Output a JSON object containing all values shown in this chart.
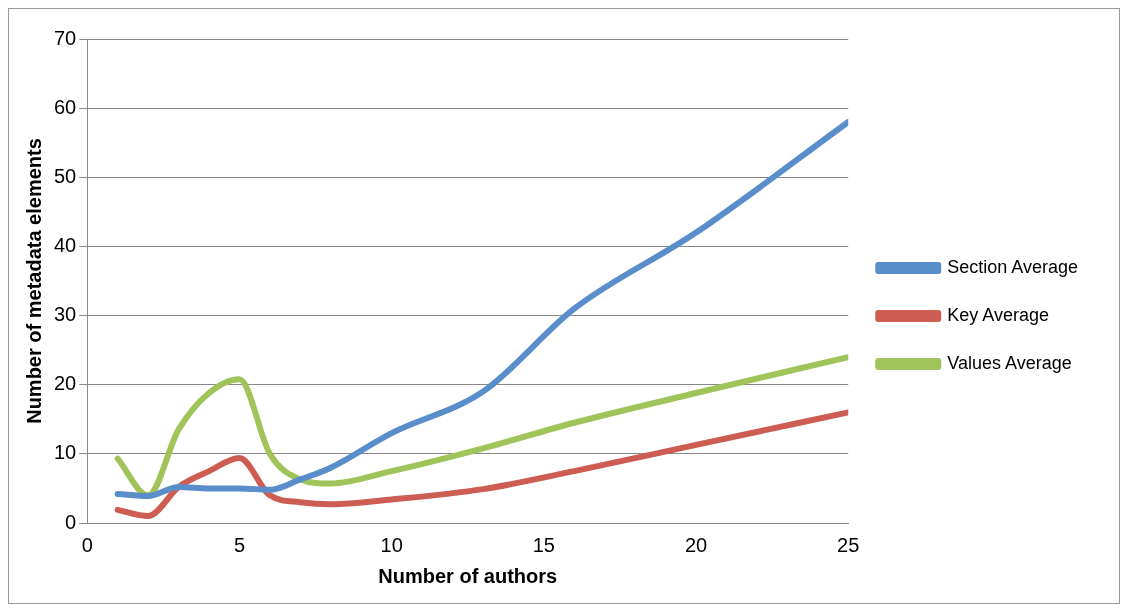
{
  "chart_data": {
    "type": "line",
    "xlabel": "Number of authors",
    "ylabel": "Number of metadata elements",
    "x": [
      1,
      2,
      3,
      4,
      5,
      6,
      7,
      8,
      10,
      13,
      16,
      20,
      25
    ],
    "xlim": [
      0,
      25
    ],
    "xticks": [
      0,
      5,
      10,
      15,
      20,
      25
    ],
    "ylim": [
      0,
      70
    ],
    "yticks": [
      0,
      10,
      20,
      30,
      40,
      50,
      60,
      70
    ],
    "grid": "y",
    "legend": "right",
    "marker": "none",
    "line_style": "solid",
    "series": [
      {
        "name": "Section Average",
        "color": "#5a8ecb",
        "values": [
          4.2,
          3.9,
          5.2,
          5,
          5,
          4.8,
          6.3,
          8,
          13,
          19,
          31,
          42,
          58
        ]
      },
      {
        "name": "Key Average",
        "color": "#cd5c53",
        "values": [
          1.9,
          1,
          5.2,
          7.5,
          9.4,
          4,
          3,
          2.7,
          3.4,
          4.9,
          7.5,
          11.3,
          16
        ]
      },
      {
        "name": "Values Average",
        "color": "#a0c45a",
        "values": [
          9.3,
          4,
          13.5,
          18.8,
          20.8,
          10,
          6.3,
          5.7,
          7.5,
          10.8,
          14.5,
          18.8,
          24
        ]
      }
    ]
  }
}
